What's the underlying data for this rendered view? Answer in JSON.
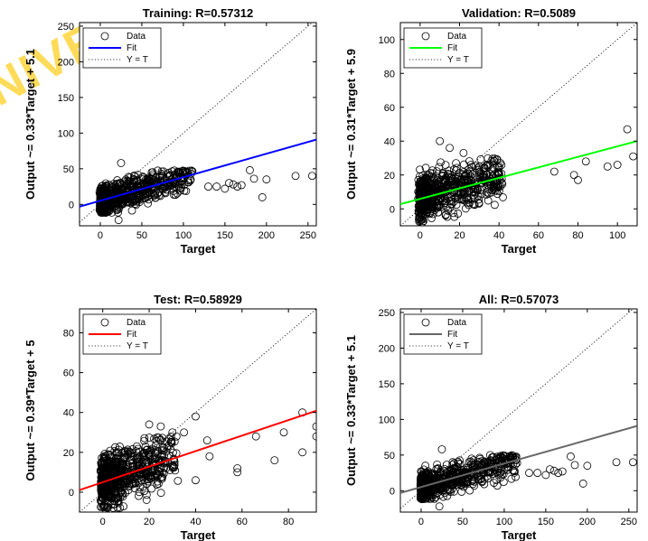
{
  "watermark": "NIVE",
  "chart_data": [
    {
      "type": "scatter",
      "title": "Training: R=0.57312",
      "xlabel": "Target",
      "ylabel": "Output ~= 0.33*Target + 5.1",
      "xlim": [
        -25,
        260
      ],
      "ylim": [
        -30,
        255
      ],
      "xticks": [
        0,
        50,
        100,
        150,
        200,
        250
      ],
      "yticks": [
        0,
        50,
        100,
        150,
        200,
        250
      ],
      "fit": {
        "slope": 0.33,
        "intercept": 5.1,
        "color": "#0000ff"
      },
      "legend": {
        "placement": "top-left",
        "entries": [
          "Data",
          "Fit",
          "Y = T"
        ]
      },
      "grid": false,
      "cluster": {
        "xmax": 110,
        "ymin": -12,
        "ymax": 48
      },
      "scatter_points": [
        [
          22,
          -22
        ],
        [
          25,
          58
        ],
        [
          130,
          25
        ],
        [
          140,
          25
        ],
        [
          150,
          22
        ],
        [
          155,
          30
        ],
        [
          160,
          28
        ],
        [
          165,
          25
        ],
        [
          170,
          27
        ],
        [
          180,
          48
        ],
        [
          185,
          36
        ],
        [
          195,
          10
        ],
        [
          200,
          35
        ],
        [
          235,
          40
        ],
        [
          255,
          40
        ]
      ]
    },
    {
      "type": "scatter",
      "title": "Validation: R=0.5089",
      "xlabel": "Target",
      "ylabel": "Output ~= 0.31*Target + 5.9",
      "xlim": [
        -10,
        110
      ],
      "ylim": [
        -10,
        110
      ],
      "xticks": [
        0,
        20,
        40,
        60,
        80,
        100
      ],
      "yticks": [
        0,
        20,
        40,
        60,
        80,
        100
      ],
      "fit": {
        "slope": 0.31,
        "intercept": 5.9,
        "color": "#00ff00"
      },
      "legend": {
        "placement": "top-left",
        "entries": [
          "Data",
          "Fit",
          "Y = T"
        ]
      },
      "grid": false,
      "cluster": {
        "xmax": 42,
        "ymin": -8,
        "ymax": 30
      },
      "scatter_points": [
        [
          10,
          40
        ],
        [
          15,
          36
        ],
        [
          22,
          33
        ],
        [
          30,
          25
        ],
        [
          38,
          12
        ],
        [
          40,
          18
        ],
        [
          68,
          22
        ],
        [
          78,
          20
        ],
        [
          80,
          17
        ],
        [
          84,
          28
        ],
        [
          95,
          25
        ],
        [
          100,
          26
        ],
        [
          105,
          47
        ],
        [
          108,
          31
        ]
      ]
    },
    {
      "type": "scatter",
      "title": "Test: R=0.58929",
      "xlabel": "Target",
      "ylabel": "Output ~= 0.39*Target + 5",
      "xlim": [
        -10,
        92
      ],
      "ylim": [
        -10,
        92
      ],
      "xticks": [
        0,
        20,
        40,
        60,
        80
      ],
      "yticks": [
        0,
        20,
        40,
        60,
        80
      ],
      "fit": {
        "slope": 0.39,
        "intercept": 5.0,
        "color": "#ff0000"
      },
      "legend": {
        "placement": "top-left",
        "entries": [
          "Data",
          "Fit",
          "Y = T"
        ]
      },
      "grid": false,
      "cluster": {
        "xmax": 32,
        "ymin": -8,
        "ymax": 28
      },
      "scatter_points": [
        [
          20,
          34
        ],
        [
          25,
          33
        ],
        [
          30,
          30
        ],
        [
          35,
          30
        ],
        [
          40,
          38
        ],
        [
          40,
          6
        ],
        [
          45,
          26
        ],
        [
          46,
          18
        ],
        [
          58,
          12
        ],
        [
          58,
          10
        ],
        [
          66,
          28
        ],
        [
          74,
          16
        ],
        [
          78,
          30
        ],
        [
          86,
          20
        ],
        [
          86,
          40
        ],
        [
          92,
          33
        ],
        [
          92,
          28
        ]
      ]
    },
    {
      "type": "scatter",
      "title": "All: R=0.57073",
      "xlabel": "Target",
      "ylabel": "Output ~= 0.33*Target + 5.1",
      "xlim": [
        -25,
        260
      ],
      "ylim": [
        -30,
        255
      ],
      "xticks": [
        0,
        50,
        100,
        150,
        200,
        250
      ],
      "yticks": [
        0,
        50,
        100,
        150,
        200,
        250
      ],
      "fit": {
        "slope": 0.33,
        "intercept": 5.1,
        "color": "#666666"
      },
      "legend": {
        "placement": "top-left",
        "entries": [
          "Data",
          "Fit",
          "Y = T"
        ]
      },
      "grid": false,
      "cluster": {
        "xmax": 115,
        "ymin": -12,
        "ymax": 50
      },
      "scatter_points": [
        [
          22,
          -22
        ],
        [
          25,
          58
        ],
        [
          130,
          25
        ],
        [
          140,
          25
        ],
        [
          150,
          22
        ],
        [
          155,
          30
        ],
        [
          160,
          28
        ],
        [
          165,
          25
        ],
        [
          170,
          27
        ],
        [
          180,
          48
        ],
        [
          185,
          36
        ],
        [
          195,
          10
        ],
        [
          200,
          35
        ],
        [
          235,
          40
        ],
        [
          255,
          40
        ]
      ]
    }
  ]
}
